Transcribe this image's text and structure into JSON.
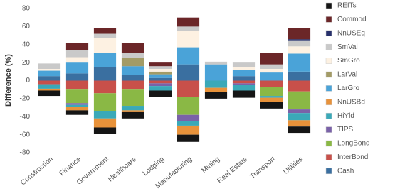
{
  "chart_data": {
    "type": "stacked_bar",
    "y_label": "Difference (%)",
    "categories": [
      "Construction",
      "Finance",
      "Government",
      "Healthcare",
      "Lodging",
      "Manufacturing",
      "Mining",
      "Real Estate",
      "Transport",
      "Utilities"
    ],
    "series": [
      {
        "name": "REITs",
        "color": "#151515",
        "values": [
          -6,
          -5,
          -7,
          -7,
          -7,
          -8,
          -7,
          -8,
          -7,
          -7
        ]
      },
      {
        "name": "Commod",
        "color": "#6b2628",
        "values": [
          0,
          8,
          6,
          11,
          4,
          10,
          0,
          0,
          13,
          12
        ]
      },
      {
        "name": "NnUSEq",
        "color": "#27306b",
        "values": [
          0,
          0,
          0,
          0,
          0,
          0,
          0,
          0,
          0,
          2
        ]
      },
      {
        "name": "SmVal",
        "color": "#c9c9c9",
        "values": [
          6,
          8,
          5,
          6,
          3,
          5,
          3,
          5,
          5,
          6
        ]
      },
      {
        "name": "SmGro",
        "color": "#fdf1e2",
        "values": [
          2,
          6,
          16,
          0,
          3,
          18,
          0,
          3,
          4,
          8
        ]
      },
      {
        "name": "LarVal",
        "color": "#a39b66",
        "values": [
          0,
          0,
          0,
          9,
          3,
          0,
          0,
          0,
          0,
          0
        ]
      },
      {
        "name": "LarGro",
        "color": "#4aa3d8",
        "values": [
          6,
          12,
          16,
          10,
          4,
          19,
          18,
          7,
          9,
          20
        ]
      },
      {
        "name": "NnUSBd",
        "color": "#e8923a",
        "values": [
          -2,
          -4,
          -10,
          -2,
          0,
          -10,
          -5,
          0,
          -5,
          -7
        ]
      },
      {
        "name": "HiYld",
        "color": "#3aa9b8",
        "values": [
          -5,
          -2,
          -8,
          -5,
          -5,
          -5,
          -8,
          -6,
          -2,
          -8
        ]
      },
      {
        "name": "TIPS",
        "color": "#7a62a8",
        "values": [
          0,
          -2,
          0,
          0,
          -3,
          -7,
          0,
          -2,
          0,
          -4
        ]
      },
      {
        "name": "LongBond",
        "color": "#8ab845",
        "values": [
          0,
          -15,
          -20,
          -18,
          0,
          -20,
          0,
          0,
          -10,
          -20
        ]
      },
      {
        "name": "InterBond",
        "color": "#c8504a",
        "values": [
          -4,
          -10,
          -14,
          -10,
          -3,
          -18,
          0,
          -3,
          -7,
          -12
        ]
      },
      {
        "name": "Cash",
        "color": "#3a6fa0",
        "values": [
          5,
          8,
          15,
          6,
          3,
          18,
          0,
          5,
          0,
          10
        ]
      }
    ],
    "ylim": [
      -80,
      80
    ],
    "yticks": [
      -80,
      -60,
      -40,
      -20,
      0,
      20,
      40,
      60,
      80
    ],
    "grid": false,
    "legend": "right"
  }
}
